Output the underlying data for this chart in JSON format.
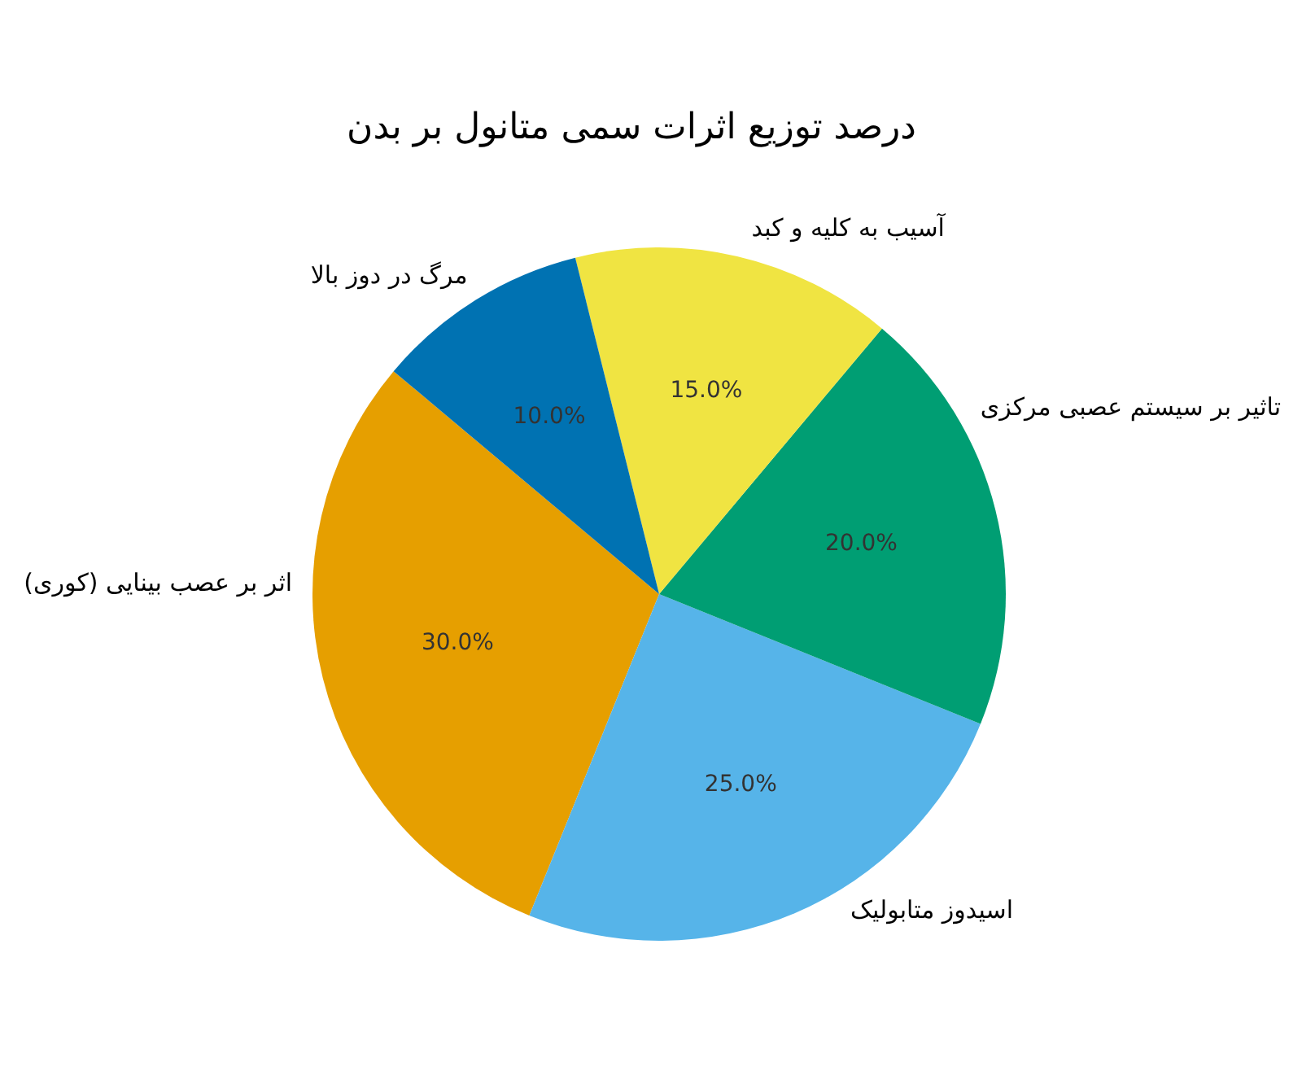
{
  "chart_data": {
    "type": "pie",
    "title": "درصد توزیع اثرات سمی متانول بر بدن",
    "categories": [
      "اثر بر عصب بینایی (کوری)",
      "اسیدوز متابولیک",
      "تاثیر بر سیستم عصبی مرکزی",
      "آسیب به کلیه و کبد",
      "مرگ در دوز بالا"
    ],
    "values": [
      30,
      25,
      20,
      15,
      10
    ],
    "colors": [
      "#e69f00",
      "#56b4e9",
      "#009e73",
      "#f0e442",
      "#0072b2"
    ],
    "value_labels": [
      "30.0%",
      "25.0%",
      "20.0%",
      "15.0%",
      "10.0%"
    ]
  }
}
